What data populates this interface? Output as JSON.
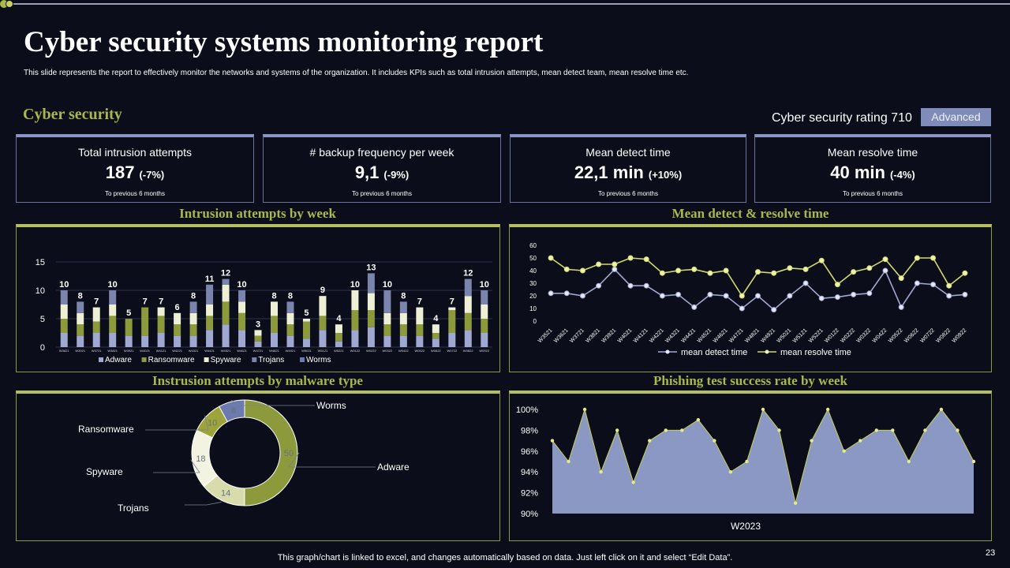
{
  "title": "Cyber security systems monitoring report",
  "subtitle": "This slide represents the report to effectively monitor the networks and systems of the organization. It includes KPIs  such as total intrusion attempts,  mean detect team,  mean resolve time etc.",
  "section_title": "Cyber security",
  "rating": {
    "label": "Cyber security rating 710",
    "badge": "Advanced"
  },
  "kpis": [
    {
      "label": "Total intrusion attempts",
      "value": "187",
      "change": "(-7%)",
      "note": "To previous 6 months"
    },
    {
      "label": "# backup frequency per week",
      "value": "9,1",
      "change": "(-9%)",
      "note": "To previous 6 months"
    },
    {
      "label": "Mean detect time",
      "value": "22,1 min",
      "change": "(+10%)",
      "note": "To previous 6 months"
    },
    {
      "label": "Mean resolve time",
      "value": "40 min",
      "change": "(-4%)",
      "note": "To previous 6 months"
    }
  ],
  "panels": {
    "intrusion_week": "Intrusion attempts by week",
    "detect_resolve": "Mean detect & resolve time",
    "malware_type": "Instrusion attempts by malware type",
    "phishing": "Phishing test success rate by week"
  },
  "footer": "This graph/chart is linked to excel,  and changes automatically based on data. Just left click on it and select “Edit Data”.",
  "page_number": "23",
  "colors": {
    "adware": "#a0a7d0",
    "ransomware": "#8d9a3c",
    "spyware": "#eef0d6",
    "trojans": "#7a84ad",
    "worms": "#6c7aad",
    "accent": "#a9b84a",
    "phish_fill": "#8b98c4"
  },
  "chart_data": [
    {
      "type": "bar",
      "stacked": true,
      "title": "Intrusion attempts by week",
      "categories": [
        "W3821",
        "W3921",
        "W3721",
        "W3821",
        "W3921",
        "W4021",
        "W4121",
        "W4221",
        "W4321",
        "W4421",
        "W4521",
        "W4621",
        "W4721",
        "W4821",
        "W4921",
        "W5021",
        "W5121",
        "W5221",
        "W0122",
        "W0222",
        "W0322",
        "W0422",
        "W0522",
        "W0622",
        "W0722",
        "W0822",
        "W0922"
      ],
      "totals": [
        10,
        8,
        7,
        10,
        5,
        7,
        7,
        6,
        8,
        11,
        12,
        10,
        3,
        8,
        8,
        5,
        9,
        4,
        10,
        13,
        10,
        8,
        7,
        4,
        7,
        12,
        10
      ],
      "series": [
        {
          "name": "Adware",
          "values": [
            2.5,
            2,
            2.5,
            2.5,
            2,
            2,
            2.5,
            2,
            2,
            3,
            4,
            3,
            1,
            2.5,
            2,
            1.5,
            3,
            1,
            3,
            3.5,
            2,
            2,
            2,
            1.5,
            2.5,
            3,
            2.5
          ]
        },
        {
          "name": "Ransomware",
          "values": [
            2.5,
            2,
            2,
            3,
            3,
            5,
            3,
            2,
            2,
            2.5,
            4,
            3,
            1,
            3,
            2,
            3,
            2.5,
            1.5,
            3.5,
            3,
            2,
            2,
            2,
            1,
            4,
            3,
            2.5
          ]
        },
        {
          "name": "Spyware",
          "values": [
            2.5,
            2,
            2.5,
            2,
            0,
            0,
            1.5,
            2,
            2,
            2,
            3,
            2,
            1,
            2.5,
            2,
            0.5,
            3.5,
            1.5,
            3.5,
            3,
            2,
            2,
            3,
            1.5,
            0.5,
            3,
            2.5
          ]
        },
        {
          "name": "Trojans",
          "values": [
            2.5,
            2,
            0,
            2.5,
            0,
            0,
            0,
            0,
            2,
            3.5,
            1,
            2,
            0,
            0,
            2,
            0,
            0,
            0,
            0,
            3.5,
            4,
            2,
            0,
            0,
            0,
            3,
            2.5
          ]
        },
        {
          "name": "Worms",
          "values": [
            0,
            0,
            0,
            0,
            0,
            0,
            0,
            0,
            0,
            0,
            0,
            0,
            0,
            0,
            0,
            0,
            0,
            0,
            0,
            0,
            0,
            0,
            0,
            0,
            0,
            0,
            0
          ]
        }
      ],
      "ylim": [
        0,
        15
      ],
      "yticks": [
        0,
        5,
        10,
        15
      ],
      "legend": "bottom"
    },
    {
      "type": "line",
      "title": "Mean detect & resolve time",
      "categories": [
        "W3521",
        "W3621",
        "W3721",
        "W3821",
        "W3921",
        "W4021",
        "W4121",
        "W4221",
        "W4321",
        "W4421",
        "W4521",
        "W4621",
        "W4721",
        "W4821",
        "W4921",
        "W5021",
        "W5121",
        "W5221",
        "W0122",
        "W0222",
        "W0322",
        "W0422",
        "W0522",
        "W0622",
        "W0722",
        "W0822",
        "W0922"
      ],
      "series": [
        {
          "name": "mean detect time",
          "values": [
            22,
            22,
            20,
            28,
            41,
            28,
            28,
            20,
            21,
            11,
            21,
            20,
            10,
            20,
            9,
            20,
            30,
            18,
            19,
            21,
            22,
            40,
            11,
            30,
            29,
            20,
            21
          ]
        },
        {
          "name": "mean resolve time",
          "values": [
            50,
            41,
            40,
            45,
            45,
            50,
            49,
            38,
            40,
            41,
            38,
            40,
            20,
            39,
            38,
            42,
            41,
            48,
            29,
            39,
            42,
            49,
            34,
            50,
            50,
            28,
            38
          ]
        }
      ],
      "ylim": [
        0,
        60
      ],
      "yticks": [
        0,
        10,
        20,
        30,
        40,
        50,
        60
      ],
      "legend": "bottom"
    },
    {
      "type": "pie",
      "donut": true,
      "title": "Instrusion attempts by malware type",
      "labels": [
        "Adware",
        "Trojans",
        "Spyware",
        "Ransomware",
        "Worms"
      ],
      "values": [
        50,
        14,
        18,
        10,
        8
      ]
    },
    {
      "type": "area",
      "title": "Phishing test success rate by week",
      "xlabel": "W2023",
      "values": [
        97,
        95,
        100,
        94,
        98,
        93,
        97,
        98,
        98,
        99,
        97,
        94,
        95,
        100,
        98,
        91,
        97,
        100,
        96,
        97,
        98,
        98,
        95,
        98,
        100,
        98,
        95
      ],
      "ylim": [
        90,
        100
      ],
      "yticks": [
        "90%",
        "92%",
        "94%",
        "96%",
        "98%",
        "100%"
      ]
    }
  ]
}
